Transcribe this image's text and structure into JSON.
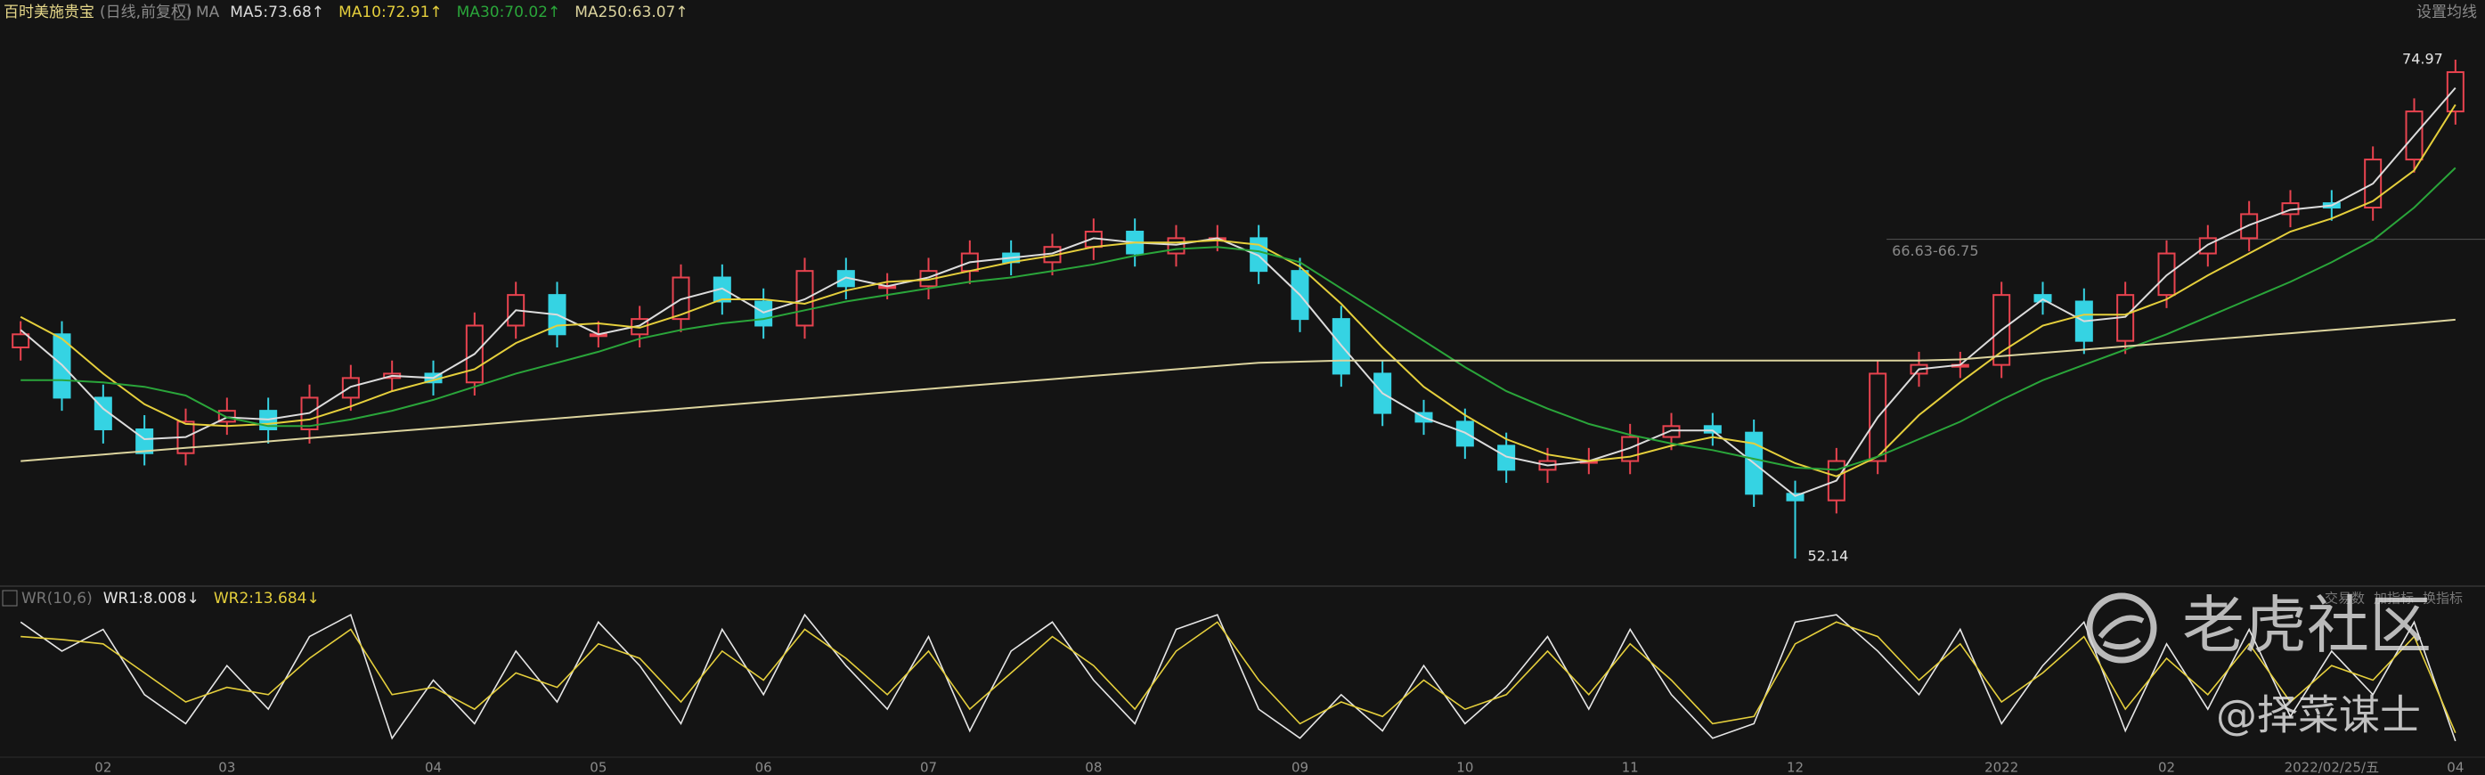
{
  "chart_data": [
    {
      "type": "candlestick",
      "title": "百时美施贵宝",
      "subtitle": "(日线,前复权)",
      "indicator": "MA",
      "button": "设置均线",
      "up_color": "#e8434f",
      "down_color": "#35d3e3",
      "categories": [
        null,
        null,
        "02",
        null,
        null,
        "03",
        null,
        null,
        null,
        null,
        "04",
        null,
        null,
        null,
        "05",
        null,
        null,
        null,
        "06",
        null,
        null,
        null,
        "07",
        null,
        null,
        null,
        "08",
        null,
        null,
        null,
        null,
        "09",
        null,
        null,
        null,
        "10",
        null,
        null,
        null,
        "11",
        null,
        null,
        null,
        "12",
        null,
        null,
        null,
        null,
        "2022",
        null,
        null,
        null,
        "02",
        null,
        null,
        null,
        "2022/02/25/五",
        null,
        null,
        "04"
      ],
      "open": [
        61.8,
        62.4,
        59.5,
        58.05,
        56.96,
        58.4,
        58.9,
        58.05,
        59.5,
        60.4,
        60.6,
        60.2,
        62.8,
        64.2,
        62.4,
        62.4,
        63.1,
        65.0,
        63.9,
        62.8,
        65.3,
        64.6,
        64.6,
        65.3,
        66.1,
        65.7,
        66.4,
        67.1,
        66.1,
        66.8,
        66.8,
        65.3,
        63.1,
        60.6,
        58.8,
        58.4,
        57.3,
        56.2,
        56.6,
        56.6,
        57.7,
        58.2,
        57.9,
        55.1,
        54.8,
        56.6,
        60.6,
        61.0,
        61.0,
        64.2,
        63.9,
        62.1,
        64.2,
        66.1,
        66.8,
        67.9,
        68.4,
        68.2,
        70.4,
        72.6
      ],
      "high": [
        63.0,
        63.0,
        60.1,
        58.7,
        59.0,
        59.5,
        59.5,
        60.1,
        61.0,
        61.2,
        61.2,
        63.4,
        64.8,
        64.8,
        63.0,
        63.7,
        65.6,
        65.6,
        64.5,
        65.9,
        65.9,
        65.2,
        65.9,
        66.7,
        66.7,
        67.0,
        67.7,
        67.7,
        67.4,
        67.4,
        67.4,
        65.9,
        63.7,
        61.2,
        59.4,
        59.0,
        57.9,
        57.2,
        57.2,
        58.3,
        58.8,
        58.8,
        58.5,
        55.7,
        57.2,
        61.2,
        61.6,
        61.6,
        64.8,
        64.8,
        64.5,
        64.8,
        66.7,
        67.4,
        68.5,
        69.0,
        69.0,
        71.0,
        73.2,
        74.97
      ],
      "low": [
        61.2,
        58.9,
        57.4,
        56.4,
        56.4,
        57.8,
        57.4,
        57.4,
        58.9,
        59.8,
        59.6,
        59.6,
        62.2,
        61.8,
        61.8,
        61.8,
        62.5,
        63.3,
        62.2,
        62.2,
        64.0,
        64.0,
        64.0,
        64.7,
        65.1,
        65.1,
        65.8,
        65.5,
        65.5,
        66.2,
        64.7,
        62.5,
        60.0,
        58.2,
        57.8,
        56.7,
        55.6,
        55.6,
        56.0,
        56.0,
        57.1,
        57.3,
        54.5,
        52.14,
        54.2,
        56.0,
        60.0,
        60.4,
        60.4,
        63.3,
        61.5,
        61.5,
        63.6,
        65.5,
        66.2,
        67.3,
        67.6,
        67.6,
        69.8,
        72.0
      ],
      "close": [
        62.4,
        59.5,
        58.05,
        56.96,
        58.4,
        58.9,
        58.05,
        59.5,
        60.4,
        60.6,
        60.2,
        62.8,
        64.2,
        62.4,
        62.4,
        63.1,
        65.0,
        63.9,
        62.8,
        65.3,
        64.6,
        64.6,
        65.3,
        66.1,
        65.7,
        66.4,
        67.1,
        66.1,
        66.8,
        66.8,
        65.3,
        63.1,
        60.6,
        58.8,
        58.4,
        57.3,
        56.2,
        56.6,
        56.6,
        57.7,
        58.2,
        57.9,
        55.1,
        54.8,
        56.6,
        60.6,
        61.0,
        61.0,
        64.2,
        63.9,
        62.1,
        64.2,
        66.1,
        66.8,
        67.9,
        68.4,
        68.2,
        70.4,
        72.6,
        74.4
      ],
      "series": [
        {
          "name": "MA5:73.68↑",
          "color": "#dcdcdc",
          "values": [
            62.6,
            61.0,
            59.0,
            57.6,
            57.7,
            58.6,
            58.5,
            58.8,
            60.0,
            60.5,
            60.4,
            61.5,
            63.5,
            63.3,
            62.4,
            62.8,
            64.0,
            64.5,
            63.4,
            64.0,
            65.0,
            64.6,
            65.0,
            65.7,
            65.9,
            66.1,
            66.8,
            66.6,
            66.5,
            66.8,
            66.0,
            64.2,
            61.9,
            59.7,
            58.6,
            57.9,
            56.8,
            56.4,
            56.6,
            57.2,
            58.0,
            58.0,
            56.5,
            55.0,
            55.7,
            58.6,
            60.8,
            61.0,
            62.6,
            64.0,
            63.0,
            63.2,
            65.1,
            66.5,
            67.4,
            68.1,
            68.3,
            69.3,
            71.5,
            73.68
          ]
        },
        {
          "name": "MA10:72.91↑",
          "color": "#e5cf3c",
          "values": [
            63.2,
            62.2,
            60.6,
            59.2,
            58.3,
            58.2,
            58.3,
            58.5,
            59.1,
            59.8,
            60.3,
            60.8,
            62.0,
            62.8,
            62.9,
            62.7,
            63.3,
            64.0,
            64.0,
            63.8,
            64.4,
            64.8,
            64.9,
            65.3,
            65.7,
            66.0,
            66.4,
            66.6,
            66.6,
            66.7,
            66.5,
            65.5,
            63.8,
            61.8,
            60.0,
            58.7,
            57.6,
            56.9,
            56.6,
            56.8,
            57.3,
            57.7,
            57.4,
            56.5,
            55.9,
            56.8,
            58.7,
            60.2,
            61.6,
            62.8,
            63.3,
            63.3,
            64.0,
            65.1,
            66.1,
            67.1,
            67.7,
            68.5,
            69.9,
            72.91
          ]
        },
        {
          "name": "MA30:70.02↑",
          "color": "#2aa53a",
          "values": [
            60.3,
            60.3,
            60.2,
            60.0,
            59.6,
            58.6,
            58.2,
            58.2,
            58.5,
            58.9,
            59.4,
            60.0,
            60.6,
            61.1,
            61.6,
            62.2,
            62.6,
            62.9,
            63.1,
            63.5,
            63.9,
            64.2,
            64.5,
            64.8,
            65.0,
            65.3,
            65.6,
            66.0,
            66.3,
            66.4,
            66.2,
            65.7,
            64.5,
            63.3,
            62.1,
            60.9,
            59.8,
            59.0,
            58.3,
            57.8,
            57.4,
            57.1,
            56.7,
            56.3,
            56.2,
            56.8,
            57.6,
            58.4,
            59.4,
            60.3,
            61.0,
            61.7,
            62.4,
            63.2,
            64.0,
            64.8,
            65.7,
            66.7,
            68.2,
            70.02
          ]
        },
        {
          "name": "MA250:63.07↑",
          "color": "#dcd49e",
          "values": [
            56.6,
            56.75,
            56.9,
            57.05,
            57.2,
            57.35,
            57.5,
            57.65,
            57.8,
            57.95,
            58.1,
            58.25,
            58.4,
            58.55,
            58.7,
            58.85,
            59.0,
            59.15,
            59.3,
            59.45,
            59.6,
            59.75,
            59.9,
            60.05,
            60.2,
            60.35,
            60.5,
            60.65,
            60.8,
            60.95,
            61.1,
            61.15,
            61.2,
            61.2,
            61.2,
            61.2,
            61.2,
            61.2,
            61.2,
            61.2,
            61.2,
            61.2,
            61.2,
            61.2,
            61.2,
            61.2,
            61.2,
            61.25,
            61.4,
            61.55,
            61.7,
            61.85,
            62.0,
            62.15,
            62.3,
            62.45,
            62.6,
            62.75,
            62.9,
            63.07
          ]
        }
      ],
      "range_label": "66.63-66.75",
      "range_value": 66.75,
      "ylim": [
        51.2,
        76.6
      ]
    },
    {
      "type": "line",
      "indicator": "WR(10,6)",
      "series": [
        {
          "name": "WR1:8.008↓",
          "color": "#e6e6e6",
          "values": [
            90,
            70,
            85,
            40,
            20,
            60,
            30,
            80,
            95,
            10,
            50,
            20,
            70,
            35,
            90,
            60,
            20,
            85,
            40,
            95,
            60,
            30,
            80,
            15,
            70,
            90,
            50,
            20,
            85,
            95,
            30,
            10,
            40,
            15,
            60,
            20,
            45,
            80,
            30,
            85,
            40,
            10,
            20,
            90,
            95,
            70,
            40,
            85,
            20,
            60,
            90,
            15,
            75,
            30,
            85,
            25,
            70,
            40,
            90,
            8.008
          ]
        },
        {
          "name": "WR2:13.684↓",
          "color": "#e5cf3c",
          "values": [
            80,
            78,
            75,
            55,
            35,
            45,
            40,
            65,
            85,
            40,
            45,
            30,
            55,
            45,
            75,
            65,
            35,
            70,
            50,
            85,
            65,
            40,
            70,
            30,
            55,
            80,
            60,
            30,
            70,
            90,
            50,
            20,
            35,
            25,
            50,
            30,
            40,
            70,
            40,
            75,
            50,
            20,
            25,
            75,
            90,
            80,
            50,
            75,
            35,
            55,
            80,
            30,
            65,
            40,
            75,
            35,
            60,
            50,
            80,
            13.684
          ]
        }
      ],
      "buttons": [
        "交易数",
        "加指标",
        "换指标"
      ],
      "ylim": [
        0,
        100
      ]
    }
  ],
  "watermark": {
    "brand": "老虎社区",
    "author": "@择菜谋士"
  }
}
